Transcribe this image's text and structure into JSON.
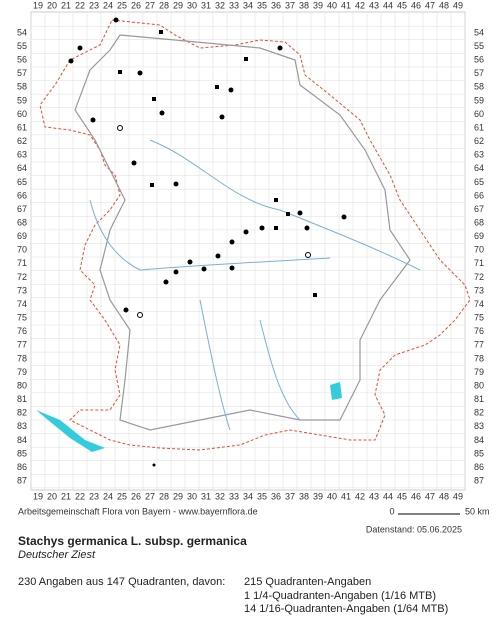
{
  "grid": {
    "columns": [
      19,
      20,
      21,
      22,
      23,
      24,
      25,
      26,
      27,
      28,
      29,
      30,
      31,
      32,
      33,
      34,
      35,
      36,
      37,
      38,
      39,
      40,
      41,
      42,
      43,
      44,
      45,
      46,
      47,
      48,
      49
    ],
    "rows": [
      54,
      55,
      56,
      57,
      58,
      59,
      60,
      61,
      62,
      63,
      64,
      65,
      66,
      67,
      68,
      69,
      70,
      71,
      72,
      73,
      74,
      75,
      76,
      77,
      78,
      79,
      80,
      81,
      82,
      83,
      84,
      85,
      86,
      87
    ]
  },
  "footer": {
    "credit": "Arbeitsgemeinschaft Flora von Bayern - www.bayernflora.de",
    "scale_start": "0",
    "scale_end": "50 km",
    "date": "Datenstand: 05.06.2025",
    "title": "Stachys germanica L. subsp. germanica",
    "subtitle": "Deutscher Ziest",
    "summary": "230 Angaben aus 147 Quadranten, davon:",
    "counts": [
      "215 Quadranten-Angaben",
      "1 1/4-Quadranten-Angaben (1/16 MTB)",
      "14 1/16-Quadranten-Angaben (1/64 MTB)"
    ]
  }
}
